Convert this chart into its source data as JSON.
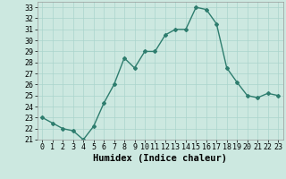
{
  "x": [
    0,
    1,
    2,
    3,
    4,
    5,
    6,
    7,
    8,
    9,
    10,
    11,
    12,
    13,
    14,
    15,
    16,
    17,
    18,
    19,
    20,
    21,
    22,
    23
  ],
  "y": [
    23,
    22.5,
    22,
    21.8,
    21,
    22.2,
    24.3,
    26,
    28.4,
    27.5,
    29,
    29,
    30.5,
    31,
    31,
    33,
    32.8,
    31.5,
    27.5,
    26.2,
    25,
    24.8,
    25.2,
    25
  ],
  "xlabel": "Humidex (Indice chaleur)",
  "ylim": [
    21,
    33.5
  ],
  "xlim": [
    -0.5,
    23.5
  ],
  "yticks": [
    21,
    22,
    23,
    24,
    25,
    26,
    27,
    28,
    29,
    30,
    31,
    32,
    33
  ],
  "xticks": [
    0,
    1,
    2,
    3,
    4,
    5,
    6,
    7,
    8,
    9,
    10,
    11,
    12,
    13,
    14,
    15,
    16,
    17,
    18,
    19,
    20,
    21,
    22,
    23
  ],
  "line_color": "#2e7d6e",
  "marker": "D",
  "marker_size": 2.0,
  "bg_color": "#cce8e0",
  "grid_color": "#aad4cc",
  "xlabel_fontsize": 7.5,
  "tick_fontsize": 6.0,
  "line_width": 1.0
}
